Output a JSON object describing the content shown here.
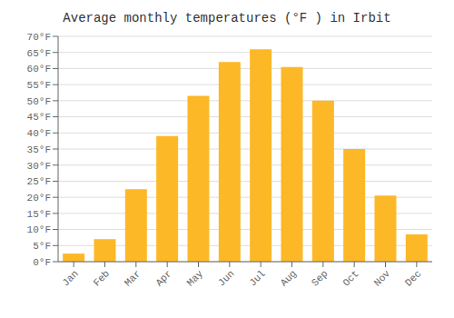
{
  "chart_data": {
    "type": "bar",
    "title": "Average monthly temperatures (°F ) in Irbit",
    "categories": [
      "Jan",
      "Feb",
      "Mar",
      "Apr",
      "May",
      "Jun",
      "Jul",
      "Aug",
      "Sep",
      "Oct",
      "Nov",
      "Dec"
    ],
    "values": [
      2.5,
      7.0,
      22.5,
      39.0,
      51.5,
      62.0,
      66.0,
      60.5,
      50.0,
      35.0,
      20.5,
      8.5
    ],
    "color": "#FDB827",
    "ylim": [
      0,
      70
    ],
    "yticks": [
      {
        "value": 0,
        "label": "0°F"
      },
      {
        "value": 5,
        "label": "5°F"
      },
      {
        "value": 10,
        "label": "10°F"
      },
      {
        "value": 15,
        "label": "15°F"
      },
      {
        "value": 20,
        "label": "20°F"
      },
      {
        "value": 25,
        "label": "25°F"
      },
      {
        "value": 30,
        "label": "30°F"
      },
      {
        "value": 35,
        "label": "35°F"
      },
      {
        "value": 40,
        "label": "40°F"
      },
      {
        "value": 45,
        "label": "45°F"
      },
      {
        "value": 50,
        "label": "50°F"
      },
      {
        "value": 55,
        "label": "55°F"
      },
      {
        "value": 60,
        "label": "60°F"
      },
      {
        "value": 65,
        "label": "65°F"
      },
      {
        "value": 70,
        "label": "70°F"
      }
    ],
    "grid": true
  }
}
